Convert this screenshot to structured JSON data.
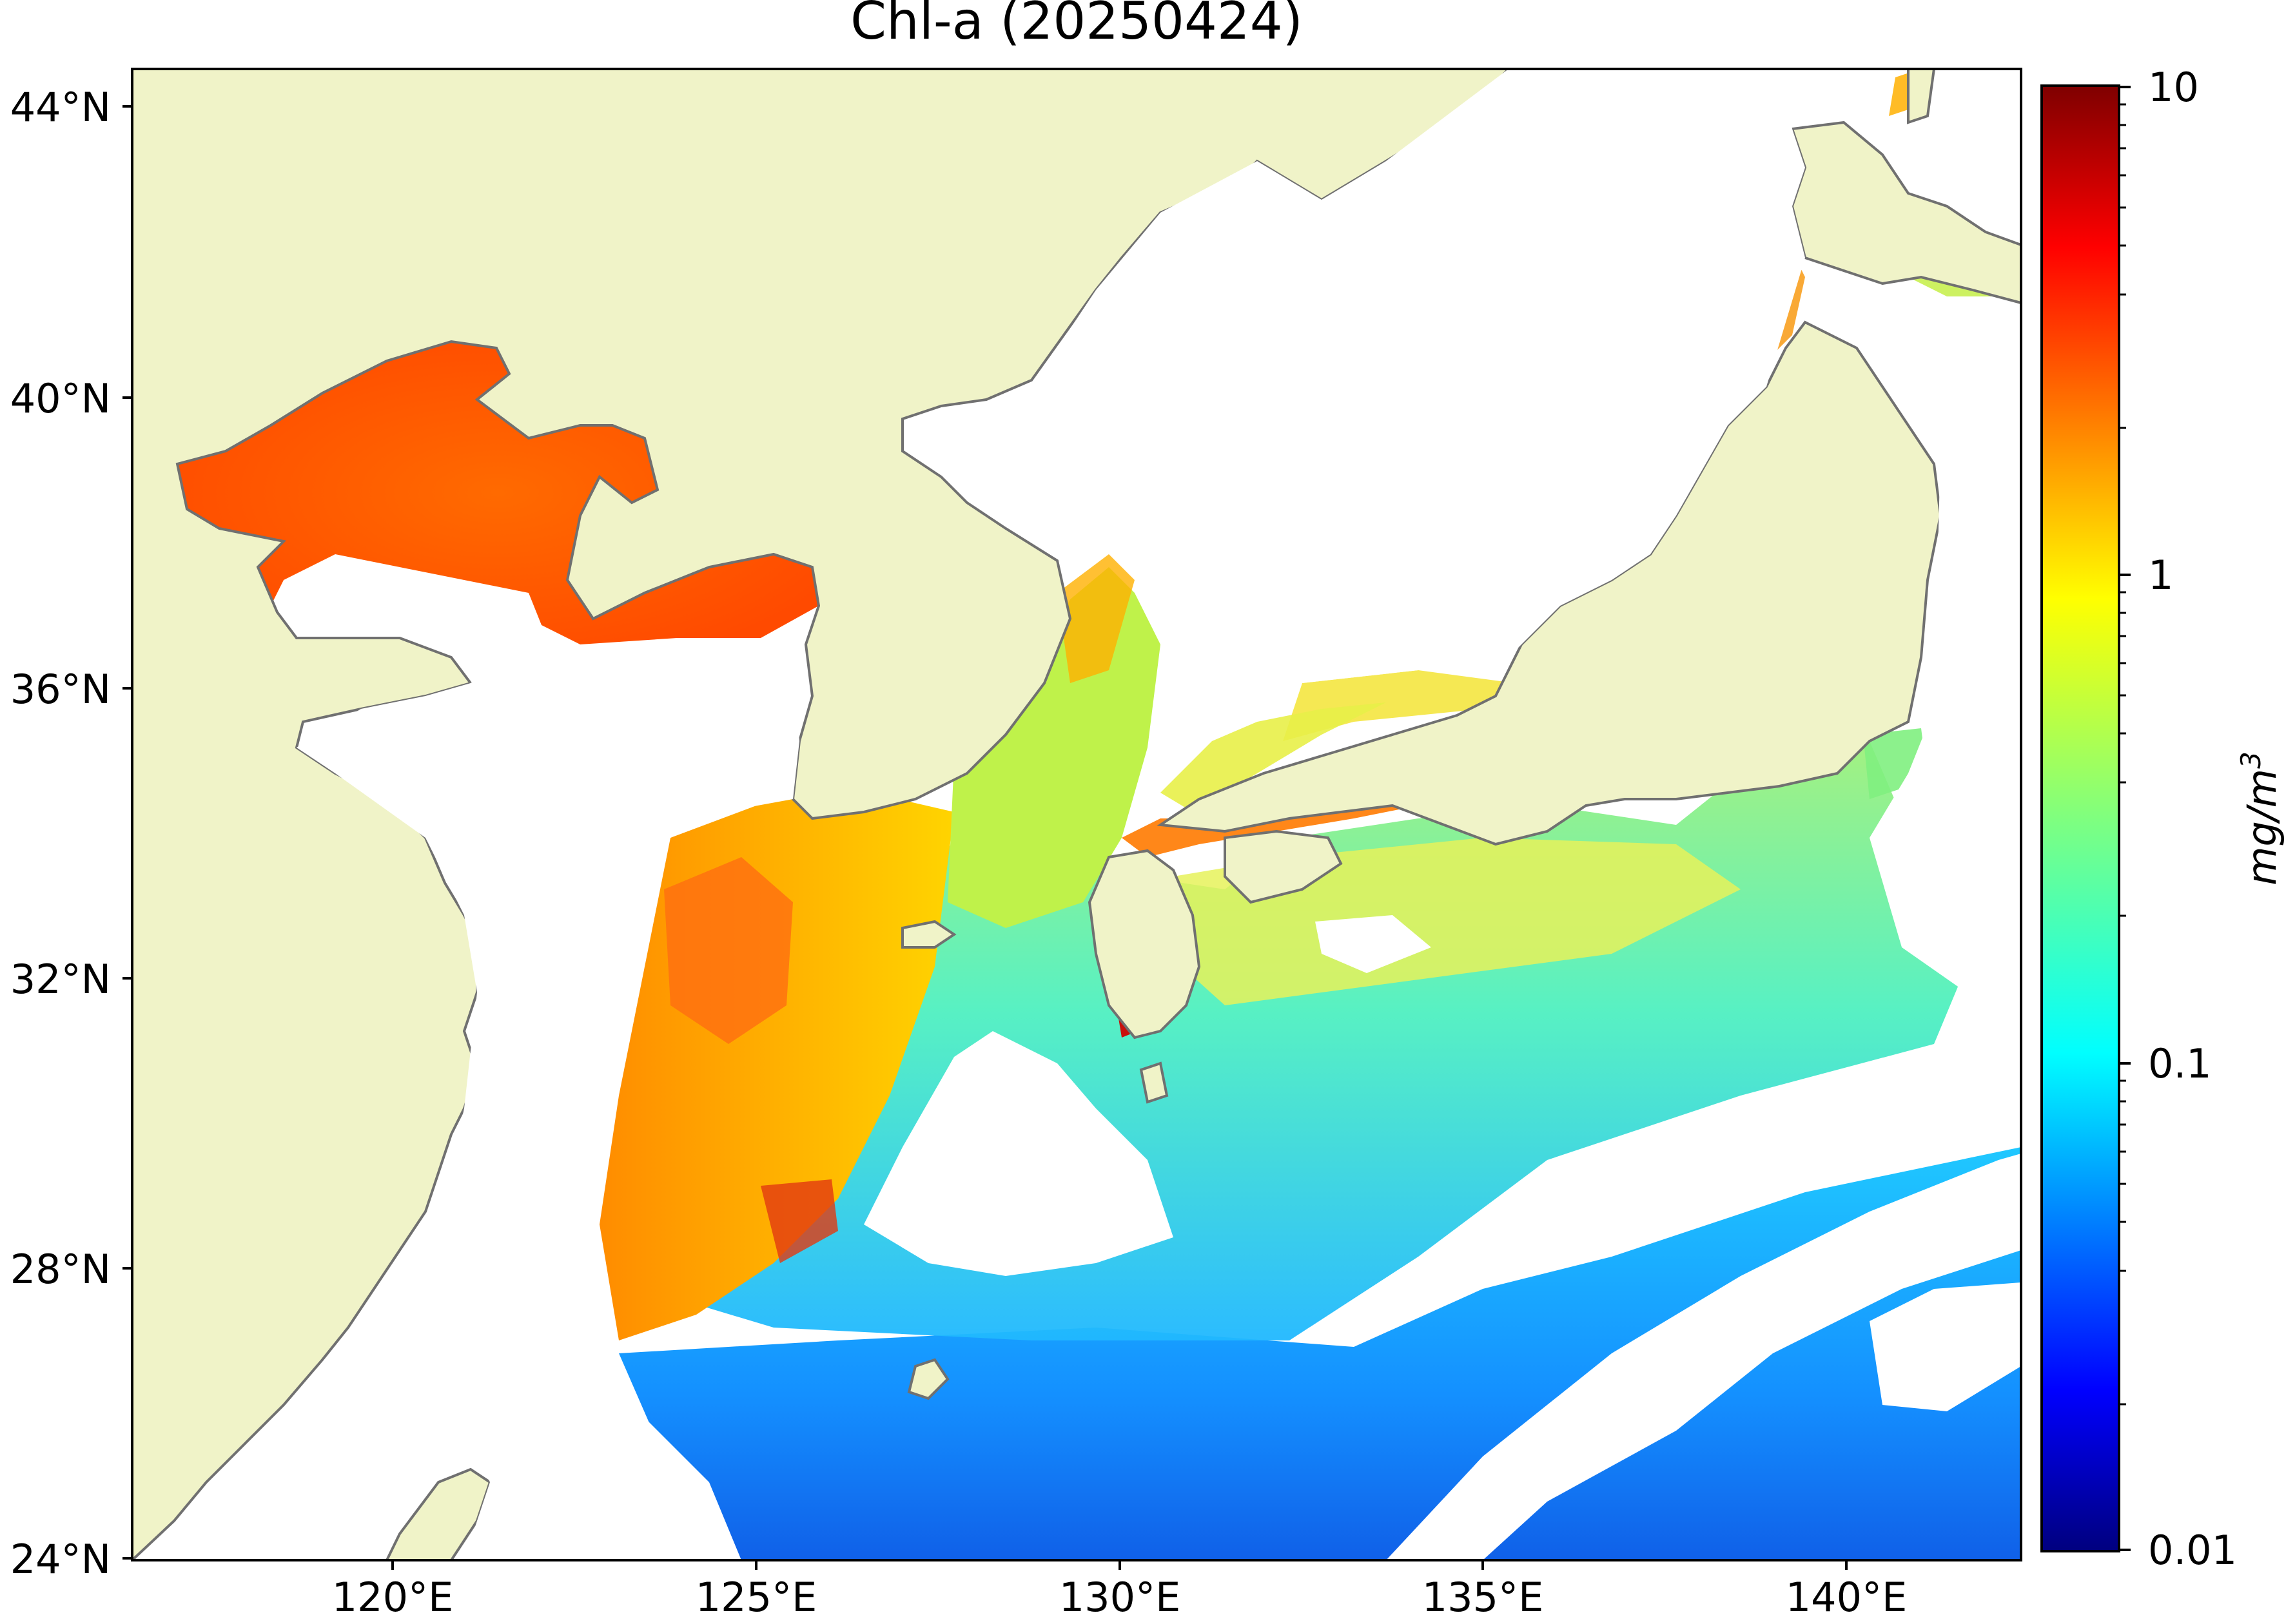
{
  "title": "Chl-a (20250424)",
  "axes": {
    "lat_ticks": [
      "44°N",
      "40°N",
      "36°N",
      "32°N",
      "28°N",
      "24°N"
    ],
    "lon_ticks": [
      "120°E",
      "125°E",
      "130°E",
      "135°E",
      "140°E"
    ]
  },
  "colorbar": {
    "label": "mg/m",
    "label_sup": "3",
    "ticks": [
      "10",
      "1",
      "0.1",
      "0.01"
    ],
    "scale": "log",
    "range": [
      0.01,
      10
    ],
    "colormap": "jet"
  },
  "colors": {
    "land": "#f0f3c8",
    "coast": "#707070",
    "nodata": "#ffffff"
  }
}
